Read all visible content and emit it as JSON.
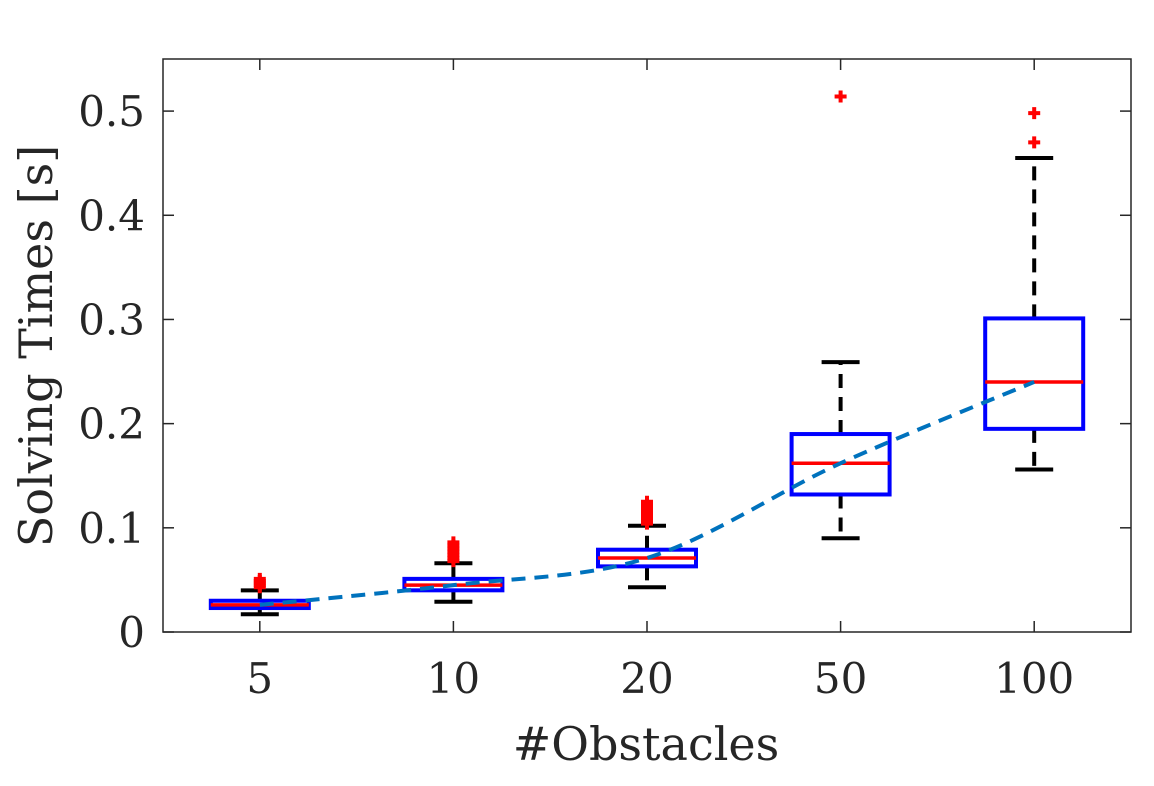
{
  "chart_data": {
    "type": "box",
    "title": "",
    "xlabel": "#Obstacles",
    "ylabel": "Solving Times [s]",
    "categories": [
      "5",
      "10",
      "20",
      "50",
      "100"
    ],
    "ylim": [
      0,
      0.55
    ],
    "yticks": [
      0,
      0.1,
      0.2,
      0.3,
      0.4,
      0.5
    ],
    "ytick_labels": [
      "0",
      "0.1",
      "0.2",
      "0.3",
      "0.4",
      "0.5"
    ],
    "grid": false,
    "boxes": [
      {
        "category": "5",
        "whisker_low": 0.017,
        "q1": 0.023,
        "median": 0.026,
        "q3": 0.03,
        "whisker_high": 0.04,
        "outliers": [
          0.043,
          0.045,
          0.047,
          0.049,
          0.051
        ]
      },
      {
        "category": "10",
        "whisker_low": 0.029,
        "q1": 0.04,
        "median": 0.045,
        "q3": 0.051,
        "whisker_high": 0.066,
        "outliers": [
          0.068,
          0.071,
          0.074,
          0.077,
          0.08,
          0.083,
          0.086
        ]
      },
      {
        "category": "20",
        "whisker_low": 0.043,
        "q1": 0.063,
        "median": 0.071,
        "q3": 0.079,
        "whisker_high": 0.102,
        "outliers": [
          0.104,
          0.107,
          0.11,
          0.113,
          0.116,
          0.119,
          0.122,
          0.125
        ]
      },
      {
        "category": "50",
        "whisker_low": 0.09,
        "q1": 0.132,
        "median": 0.162,
        "q3": 0.19,
        "whisker_high": 0.259,
        "outliers": [
          0.514
        ]
      },
      {
        "category": "100",
        "whisker_low": 0.156,
        "q1": 0.195,
        "median": 0.24,
        "q3": 0.301,
        "whisker_high": 0.455,
        "outliers": [
          0.47,
          0.498
        ]
      }
    ],
    "trend_line": {
      "style": "dashed",
      "values": [
        0.026,
        0.045,
        0.071,
        0.162,
        0.24
      ]
    },
    "colors": {
      "box": "#0000ff",
      "median": "#ff0000",
      "whisker": "#000000",
      "outlier": "#ff0000",
      "trend": "#0072bd",
      "axis": "#262626"
    }
  }
}
